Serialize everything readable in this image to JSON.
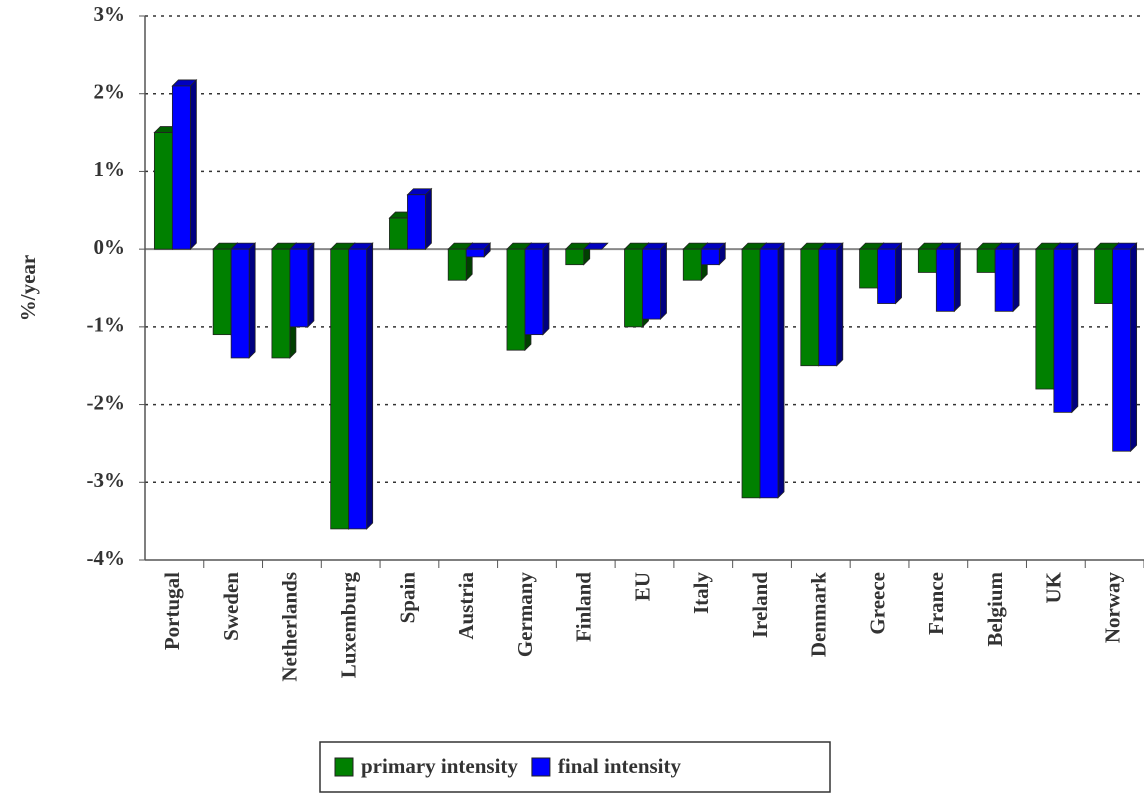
{
  "chart_data": {
    "type": "bar",
    "y_label": "%/year",
    "categories": [
      "Portugal",
      "Sweden",
      "Netherlands",
      "Luxemburg",
      "Spain",
      "Austria",
      "Germany",
      "Finland",
      "EU",
      "Italy",
      "Ireland",
      "Denmark",
      "Greece",
      "France",
      "Belgium",
      "UK",
      "Norway"
    ],
    "series": [
      {
        "name": "primary intensity",
        "color": "#008000",
        "values": [
          1.5,
          -1.1,
          -1.4,
          -3.6,
          0.4,
          -0.4,
          -1.3,
          -0.2,
          -1.0,
          -0.4,
          -3.2,
          -1.5,
          -0.5,
          -0.3,
          -0.3,
          -1.8,
          -0.7
        ]
      },
      {
        "name": "final intensity",
        "color": "#0000ff",
        "values": [
          2.1,
          -1.4,
          -1.0,
          -3.6,
          0.7,
          -0.1,
          -1.1,
          0,
          -0.9,
          -0.2,
          -3.2,
          -1.5,
          -0.7,
          -0.8,
          -0.8,
          -2.1,
          -2.6
        ]
      }
    ],
    "ylim": [
      -4,
      3
    ],
    "yticks": [
      {
        "value": -4,
        "label": "-4%"
      },
      {
        "value": -3,
        "label": "-3%"
      },
      {
        "value": -2,
        "label": "-2%"
      },
      {
        "value": -1,
        "label": "-1%"
      },
      {
        "value": 0,
        "label": "0%"
      },
      {
        "value": 1,
        "label": "1%"
      },
      {
        "value": 2,
        "label": "2%"
      },
      {
        "value": 3,
        "label": "3%"
      }
    ],
    "grid": true,
    "legend": "bottom"
  }
}
